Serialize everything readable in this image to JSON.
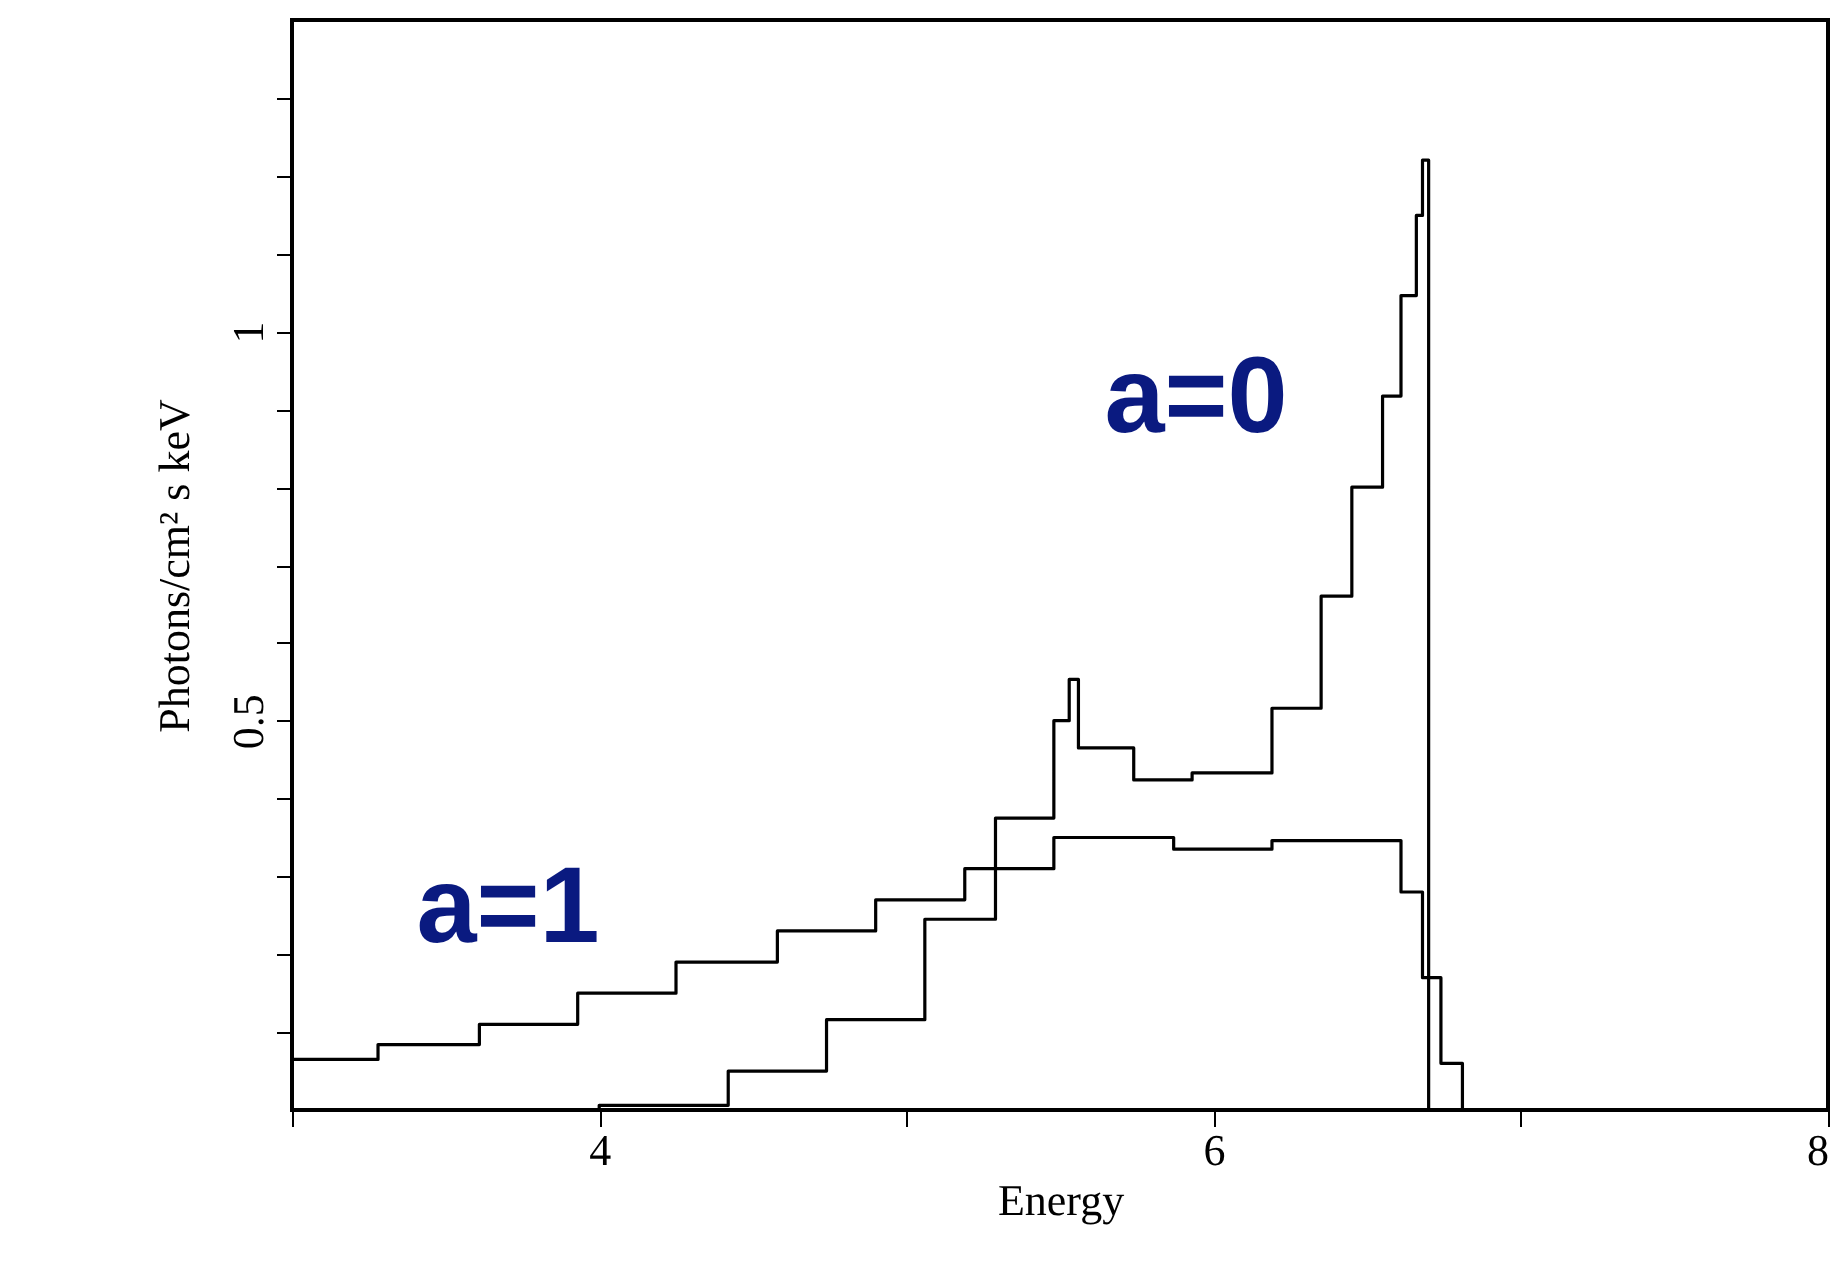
{
  "chart_data": {
    "type": "step",
    "xlabel": "Energy",
    "ylabel": "Photons/cm² s keV",
    "xlim": [
      3,
      8
    ],
    "ylim": [
      0,
      1.4
    ],
    "xticks": [
      {
        "value": 3,
        "label": null
      },
      4,
      {
        "value": 5,
        "label": null
      },
      6,
      {
        "value": 7,
        "label": null
      },
      8
    ],
    "yticks": [
      {
        "value": 0.1,
        "label": null
      },
      {
        "value": 0.2,
        "label": null
      },
      {
        "value": 0.3,
        "label": null
      },
      {
        "value": 0.4,
        "label": null
      },
      0.5,
      {
        "value": 0.6,
        "label": null
      },
      {
        "value": 0.7,
        "label": null
      },
      {
        "value": 0.8,
        "label": null
      },
      {
        "value": 0.9,
        "label": null
      },
      1,
      {
        "value": 1.1,
        "label": null
      },
      {
        "value": 1.2,
        "label": null
      },
      {
        "value": 1.3,
        "label": null
      }
    ],
    "marker": "none",
    "line_style": "solid",
    "grid": false,
    "series": [
      {
        "name": "a=0",
        "color": "#000000",
        "x": [
          3.67,
          4.0,
          4.42,
          4.74,
          5.06,
          5.29,
          5.48,
          5.53,
          5.56,
          5.74,
          5.93,
          6.19,
          6.35,
          6.45,
          6.55,
          6.61,
          6.66,
          6.68,
          6.7
        ],
        "values": [
          0,
          0.006,
          0.05,
          0.116,
          0.245,
          0.375,
          0.5,
          0.553,
          0.465,
          0.424,
          0.433,
          0.516,
          0.66,
          0.8,
          0.917,
          1.046,
          1.149,
          1.22,
          0
        ]
      },
      {
        "name": "a=1",
        "color": "#000000",
        "x": [
          3.0,
          3.28,
          3.61,
          3.93,
          4.25,
          4.58,
          4.9,
          5.19,
          5.48,
          5.87,
          6.19,
          6.55,
          6.61,
          6.68,
          6.74,
          6.81
        ],
        "values": [
          0.065,
          0.084,
          0.11,
          0.15,
          0.19,
          0.23,
          0.27,
          0.31,
          0.35,
          0.335,
          0.346,
          0.346,
          0.28,
          0.17,
          0.06,
          0
        ]
      }
    ]
  }
}
